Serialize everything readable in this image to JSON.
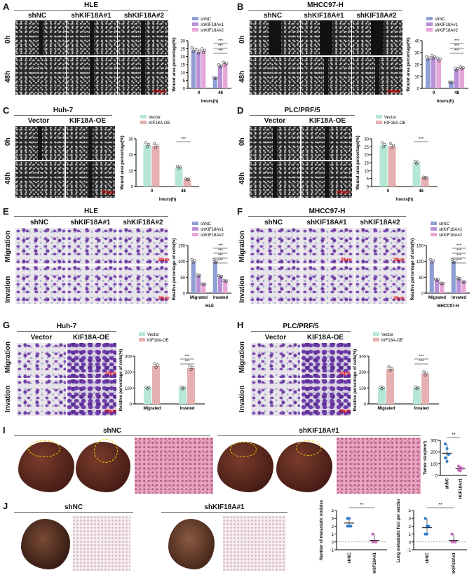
{
  "panels": {
    "A": {
      "letter": "A",
      "title": "HLE",
      "cols": [
        "shNC",
        "shKIF18A#1",
        "shKIF18A#2"
      ],
      "rows": [
        "0h",
        "48h"
      ],
      "scale": "200μm"
    },
    "B": {
      "letter": "B",
      "title": "MHCC97-H",
      "cols": [
        "shNC",
        "shKIF18A#1",
        "shKIF18A#2"
      ],
      "rows": [
        "0h",
        "48h"
      ],
      "scale": "200μm"
    },
    "C": {
      "letter": "C",
      "title": "Huh-7",
      "cols": [
        "Vector",
        "KIF18A-OE"
      ],
      "rows": [
        "0h",
        "48h"
      ],
      "scale": "200μm"
    },
    "D": {
      "letter": "D",
      "title": "PLC/PRF/5",
      "cols": [
        "Vector",
        "KIF18A-OE"
      ],
      "rows": [
        "0h",
        "48h"
      ],
      "scale": "200μm"
    },
    "E": {
      "letter": "E",
      "title": "HLE",
      "cols": [
        "shNC",
        "shKIF18A#1",
        "shKIF18A#2"
      ],
      "rows": [
        "Migration",
        "Invation"
      ],
      "scale": "20μm"
    },
    "F": {
      "letter": "F",
      "title": "MHCC97-H",
      "cols": [
        "shNC",
        "shKIF18A#1",
        "shKIF18A#2"
      ],
      "rows": [
        "Migration",
        "Invation"
      ],
      "scale": "20μm"
    },
    "G": {
      "letter": "G",
      "title": "Huh-7",
      "cols": [
        "Vector",
        "KIF18A-OE"
      ],
      "rows": [
        "Migration",
        "Invation"
      ],
      "scale": "20μm"
    },
    "H": {
      "letter": "H",
      "title": "PLC/PRF/5",
      "cols": [
        "Vector",
        "KIF18A-OE"
      ],
      "rows": [
        "Migration",
        "Invation"
      ],
      "scale": "20μm"
    },
    "I": {
      "letter": "I",
      "groups": [
        "shNC",
        "shKIF18A#1"
      ]
    },
    "J": {
      "letter": "J",
      "groups": [
        "shNC",
        "shKIF18A#1"
      ]
    }
  },
  "colors": {
    "shNC": "#8f9fd6",
    "sh1": "#b98fd6",
    "sh2": "#e6a6d6",
    "vector": "#b6e6d6",
    "oe": "#e6b0b0"
  },
  "chart_data": [
    {
      "id": "A",
      "type": "bar",
      "categories": [
        "0",
        "48"
      ],
      "xlabel": "hours(h)",
      "ylabel": "Wound area percentage(%)",
      "ylim": [
        0,
        30
      ],
      "yticks": [
        0,
        5,
        10,
        15,
        20,
        25,
        30
      ],
      "series": [
        {
          "name": "shNC",
          "values": [
            24,
            6.5
          ]
        },
        {
          "name": "shKIF18A#1",
          "values": [
            23,
            14
          ]
        },
        {
          "name": "shKIF18A#2",
          "values": [
            23.5,
            15.5
          ]
        }
      ],
      "sig": [
        "***",
        "***",
        "***"
      ]
    },
    {
      "id": "B",
      "type": "bar",
      "categories": [
        "0",
        "48"
      ],
      "xlabel": "hours(h)",
      "ylabel": "Wound area percentage(%)",
      "ylim": [
        0,
        40
      ],
      "yticks": [
        0,
        10,
        20,
        30,
        40
      ],
      "series": [
        {
          "name": "shNC",
          "values": [
            25,
            5
          ]
        },
        {
          "name": "shKIF18A#1",
          "values": [
            26,
            16
          ]
        },
        {
          "name": "shKIF18A#2",
          "values": [
            24,
            17
          ]
        }
      ],
      "sig": [
        "***",
        "***",
        "***"
      ]
    },
    {
      "id": "C",
      "type": "bar",
      "categories": [
        "0",
        "48"
      ],
      "xlabel": "hours(h)",
      "ylabel": "Wound area percentage(%)",
      "ylim": [
        0,
        30
      ],
      "yticks": [
        0,
        10,
        20,
        30
      ],
      "series": [
        {
          "name": "Vector",
          "values": [
            26,
            12
          ]
        },
        {
          "name": "KIF18A-OE",
          "values": [
            25.5,
            4.5
          ]
        }
      ],
      "sig": [
        "***"
      ]
    },
    {
      "id": "D",
      "type": "bar",
      "categories": [
        "0",
        "48"
      ],
      "xlabel": "hours(h)",
      "ylabel": "Wound area percentage(%)",
      "ylim": [
        0,
        30
      ],
      "yticks": [
        0,
        5,
        10,
        15,
        20,
        25,
        30
      ],
      "series": [
        {
          "name": "Vector",
          "values": [
            26,
            15
          ]
        },
        {
          "name": "KIF18A-OE",
          "values": [
            25.5,
            5.5
          ]
        }
      ],
      "sig": [
        "***"
      ]
    },
    {
      "id": "E",
      "type": "bar",
      "categories": [
        "Migrated",
        "Invated"
      ],
      "xlabel": "HLE",
      "ylabel": "Relative percentage of cells(%)",
      "ylim": [
        0,
        150
      ],
      "yticks": [
        0,
        50,
        100,
        150
      ],
      "series": [
        {
          "name": "shNC",
          "values": [
            100,
            100
          ]
        },
        {
          "name": "shKIF18A#1",
          "values": [
            55,
            52
          ]
        },
        {
          "name": "shKIF18A#2",
          "values": [
            28,
            38
          ]
        }
      ],
      "sig": [
        "***",
        "***",
        "***",
        "***"
      ]
    },
    {
      "id": "F",
      "type": "bar",
      "categories": [
        "Migrated",
        "Invated"
      ],
      "xlabel": "MHCC97-H",
      "ylabel": "Relative percentage of cells(%)",
      "ylim": [
        0,
        150
      ],
      "yticks": [
        0,
        50,
        100,
        150
      ],
      "series": [
        {
          "name": "shNC",
          "values": [
            100,
            100
          ]
        },
        {
          "name": "shKIF18A#1",
          "values": [
            42,
            45
          ]
        },
        {
          "name": "shKIF18A#2",
          "values": [
            30,
            35
          ]
        }
      ],
      "sig": [
        "***",
        "***",
        "***",
        "***"
      ]
    },
    {
      "id": "G",
      "type": "bar",
      "categories": [
        "Migrated",
        "Invated"
      ],
      "xlabel": "",
      "ylabel": "Relative percentage of cells(%)",
      "ylim": [
        0,
        300
      ],
      "yticks": [
        0,
        100,
        200,
        300
      ],
      "series": [
        {
          "name": "Vector",
          "values": [
            100,
            100
          ]
        },
        {
          "name": "KIF18A-OE",
          "values": [
            240,
            225
          ]
        }
      ],
      "sig": [
        "***",
        "***"
      ]
    },
    {
      "id": "H",
      "type": "bar",
      "categories": [
        "Migrated",
        "Invated"
      ],
      "xlabel": "",
      "ylabel": "Relative percentage of cells(%)",
      "ylim": [
        0,
        300
      ],
      "yticks": [
        0,
        100,
        200,
        300
      ],
      "series": [
        {
          "name": "Vector",
          "values": [
            100,
            100
          ]
        },
        {
          "name": "KIF18A-OE",
          "values": [
            220,
            190
          ]
        }
      ],
      "sig": [
        "***",
        "***"
      ]
    },
    {
      "id": "I",
      "type": "scatter",
      "categories": [
        "shNC",
        "shKIF18A#1"
      ],
      "ylabel": "Tumor size(mm³)",
      "ylim": [
        0,
        300
      ],
      "yticks": [
        0,
        100,
        200,
        300
      ],
      "series": [
        {
          "name": "shNC",
          "values": [
            270,
            230,
            180,
            150,
            120
          ]
        },
        {
          "name": "shKIF18A#1",
          "values": [
            80,
            70,
            60,
            45,
            40
          ]
        }
      ],
      "sig": [
        "**"
      ]
    },
    {
      "id": "J1",
      "type": "scatter",
      "categories": [
        "shNC",
        "shKIF18A#1"
      ],
      "ylabel": "Number of metastatic nodules",
      "ylim": [
        -1,
        4
      ],
      "yticks": [
        -1,
        0,
        1,
        2,
        3,
        4
      ],
      "series": [
        {
          "name": "shNC",
          "values": [
            3,
            3,
            2,
            2,
            2
          ]
        },
        {
          "name": "shKIF18A#1",
          "values": [
            1,
            0,
            0,
            0,
            0
          ]
        }
      ],
      "sig": [
        "**"
      ]
    },
    {
      "id": "J2",
      "type": "scatter",
      "categories": [
        "shNC",
        "shKIF18A#1"
      ],
      "ylabel": "Lung metastatic foci per section",
      "ylim": [
        -1,
        4
      ],
      "yticks": [
        -1,
        0,
        1,
        2,
        3,
        4
      ],
      "series": [
        {
          "name": "shNC",
          "values": [
            3,
            2,
            2,
            1,
            1
          ]
        },
        {
          "name": "shKIF18A#1",
          "values": [
            1,
            0,
            0,
            0,
            0
          ]
        }
      ],
      "sig": [
        "**"
      ]
    }
  ]
}
